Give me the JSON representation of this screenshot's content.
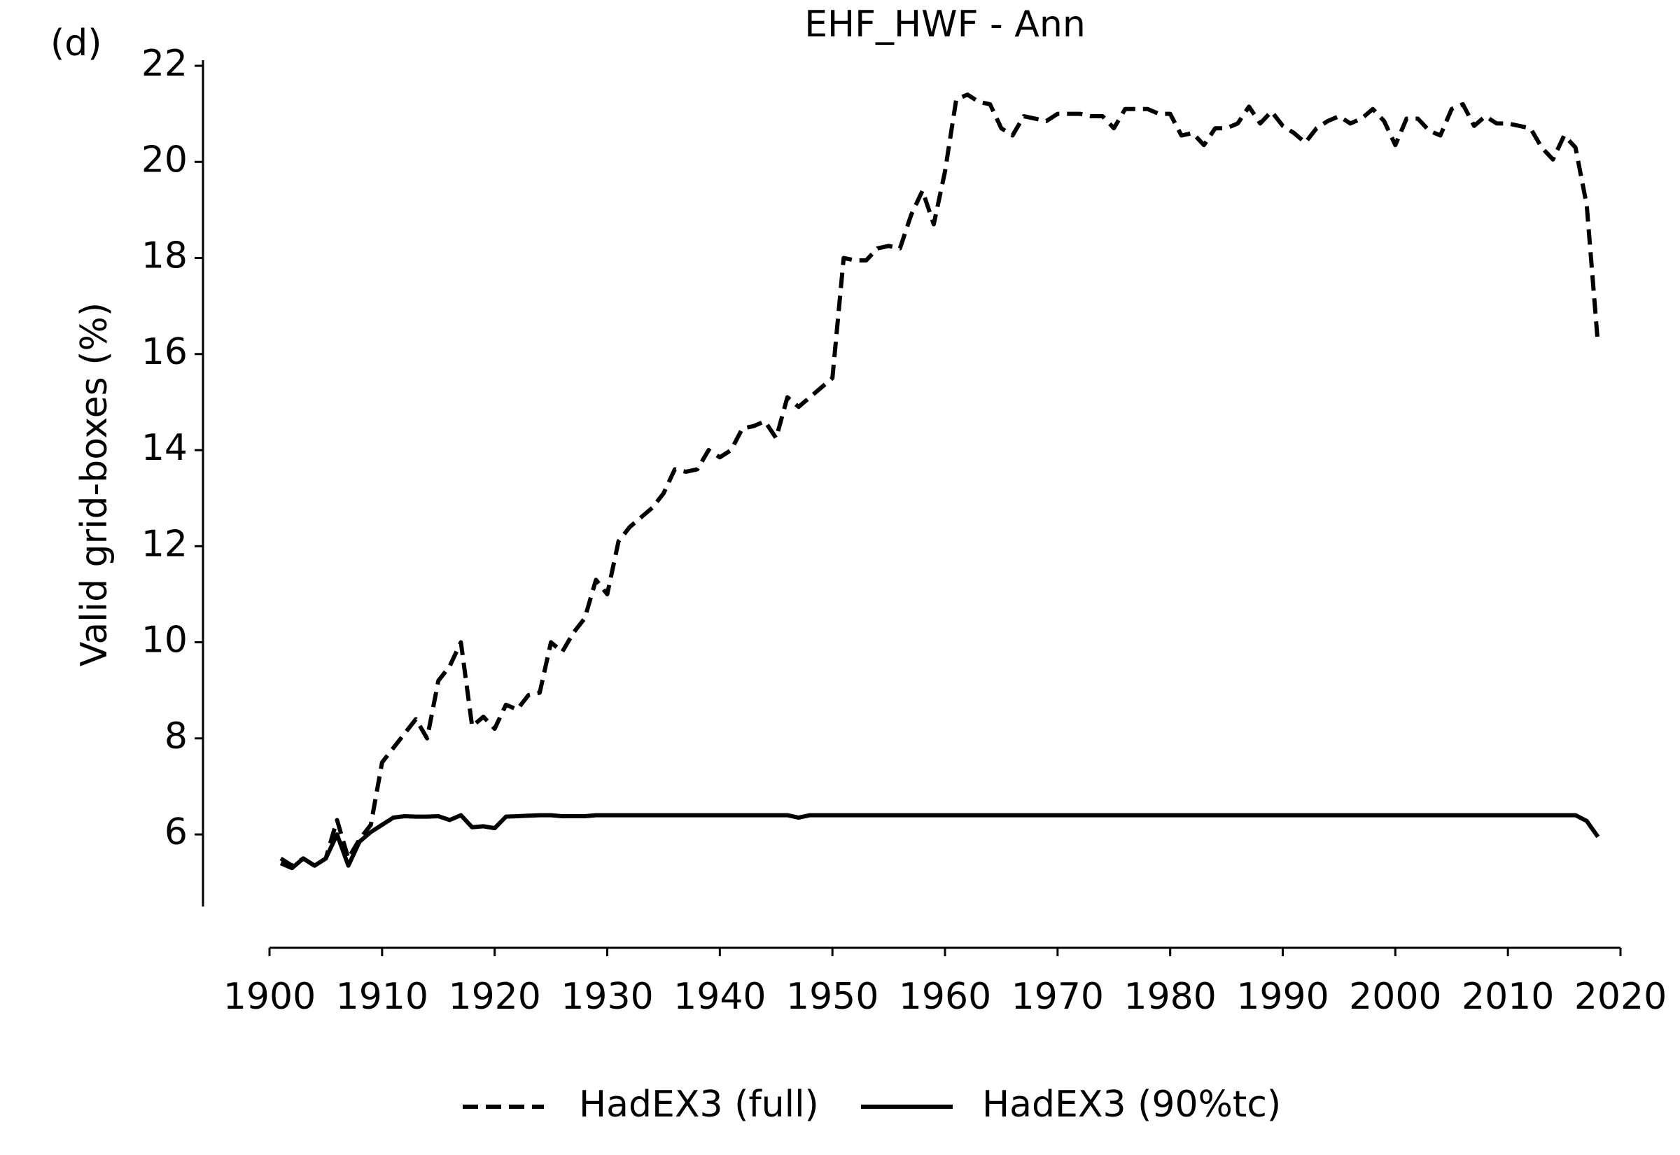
{
  "chart_data": {
    "type": "line",
    "title": "EHF_HWF - Ann",
    "panel_label": "(d)",
    "ylabel": "Valid grid-boxes (%)",
    "x": [
      1901,
      1902,
      1903,
      1904,
      1905,
      1906,
      1907,
      1908,
      1909,
      1910,
      1911,
      1912,
      1913,
      1914,
      1915,
      1916,
      1917,
      1918,
      1919,
      1920,
      1921,
      1922,
      1923,
      1924,
      1925,
      1926,
      1927,
      1928,
      1929,
      1930,
      1931,
      1932,
      1933,
      1934,
      1935,
      1936,
      1937,
      1938,
      1939,
      1940,
      1941,
      1942,
      1943,
      1944,
      1945,
      1946,
      1947,
      1948,
      1949,
      1950,
      1951,
      1952,
      1953,
      1954,
      1955,
      1956,
      1957,
      1958,
      1959,
      1960,
      1961,
      1962,
      1963,
      1964,
      1965,
      1966,
      1967,
      1968,
      1969,
      1970,
      1971,
      1972,
      1973,
      1974,
      1975,
      1976,
      1977,
      1978,
      1979,
      1980,
      1981,
      1982,
      1983,
      1984,
      1985,
      1986,
      1987,
      1988,
      1989,
      1990,
      1991,
      1992,
      1993,
      1994,
      1995,
      1996,
      1997,
      1998,
      1999,
      2000,
      2001,
      2002,
      2003,
      2004,
      2005,
      2006,
      2007,
      2008,
      2009,
      2010,
      2011,
      2012,
      2013,
      2014,
      2015,
      2016,
      2017,
      2018
    ],
    "series": [
      {
        "name": "HadEX3 (full)",
        "color": "#000000",
        "dash": true,
        "values": [
          5.5,
          5.35,
          5.5,
          5.35,
          5.5,
          6.3,
          5.5,
          5.9,
          6.2,
          7.5,
          7.8,
          8.1,
          8.4,
          8.0,
          9.2,
          9.5,
          10.0,
          8.25,
          8.45,
          8.2,
          8.7,
          8.6,
          8.9,
          8.95,
          10.0,
          9.8,
          10.2,
          10.5,
          11.3,
          11.0,
          12.1,
          12.4,
          12.6,
          12.8,
          13.1,
          13.6,
          13.55,
          13.6,
          14.0,
          13.85,
          14.0,
          14.45,
          14.5,
          14.6,
          14.25,
          15.1,
          14.9,
          15.1,
          15.3,
          15.5,
          18.0,
          17.95,
          17.95,
          18.2,
          18.25,
          18.2,
          18.9,
          19.4,
          18.7,
          19.8,
          21.3,
          21.4,
          21.25,
          21.2,
          20.7,
          20.55,
          20.95,
          20.9,
          20.85,
          21.0,
          21.0,
          21.0,
          20.95,
          20.95,
          20.7,
          21.1,
          21.1,
          21.1,
          21.0,
          21.0,
          20.55,
          20.6,
          20.35,
          20.7,
          20.7,
          20.8,
          21.15,
          20.8,
          21.05,
          20.75,
          20.6,
          20.4,
          20.7,
          20.85,
          20.95,
          20.8,
          20.9,
          21.1,
          20.85,
          20.35,
          20.9,
          20.9,
          20.65,
          20.55,
          21.1,
          21.2,
          20.75,
          20.95,
          20.8,
          20.8,
          20.75,
          20.7,
          20.3,
          20.05,
          20.55,
          20.3,
          19.1,
          16.2
        ]
      },
      {
        "name": "HadEX3 (90%tc)",
        "color": "#000000",
        "dash": false,
        "values": [
          5.4,
          5.3,
          5.5,
          5.35,
          5.5,
          6.0,
          5.35,
          5.85,
          6.05,
          6.2,
          6.35,
          6.38,
          6.37,
          6.37,
          6.38,
          6.3,
          6.4,
          6.15,
          6.17,
          6.13,
          6.37,
          6.38,
          6.39,
          6.4,
          6.4,
          6.38,
          6.38,
          6.38,
          6.4,
          6.4,
          6.4,
          6.4,
          6.4,
          6.4,
          6.4,
          6.4,
          6.4,
          6.4,
          6.4,
          6.4,
          6.4,
          6.4,
          6.4,
          6.4,
          6.4,
          6.4,
          6.35,
          6.4,
          6.4,
          6.4,
          6.4,
          6.4,
          6.4,
          6.4,
          6.4,
          6.4,
          6.4,
          6.4,
          6.4,
          6.4,
          6.4,
          6.4,
          6.4,
          6.4,
          6.4,
          6.4,
          6.4,
          6.4,
          6.4,
          6.4,
          6.4,
          6.4,
          6.4,
          6.4,
          6.4,
          6.4,
          6.4,
          6.4,
          6.4,
          6.4,
          6.4,
          6.4,
          6.4,
          6.4,
          6.4,
          6.4,
          6.4,
          6.4,
          6.4,
          6.4,
          6.4,
          6.4,
          6.4,
          6.4,
          6.4,
          6.4,
          6.4,
          6.4,
          6.4,
          6.4,
          6.4,
          6.4,
          6.4,
          6.4,
          6.4,
          6.4,
          6.4,
          6.4,
          6.4,
          6.4,
          6.4,
          6.4,
          6.4,
          6.4,
          6.4,
          6.4,
          6.28,
          5.95
        ]
      }
    ],
    "xlim": [
      1900,
      2020
    ],
    "xticks": [
      1900,
      1910,
      1920,
      1930,
      1940,
      1950,
      1960,
      1970,
      1980,
      1990,
      2000,
      2010,
      2020
    ],
    "ylim": [
      4.5,
      22
    ],
    "yticks": [
      6,
      8,
      10,
      12,
      14,
      16,
      18,
      20,
      22
    ],
    "legend": "bottom"
  }
}
